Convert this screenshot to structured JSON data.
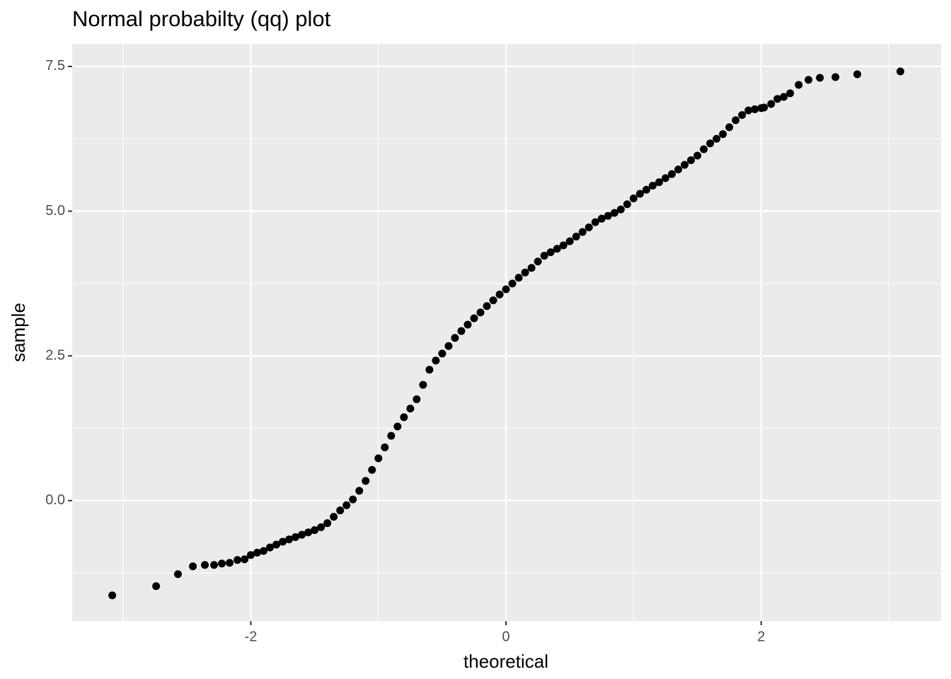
{
  "chart_data": {
    "type": "scatter",
    "title": "Normal probabilty (qq) plot",
    "x_label": "theoretical",
    "y_label": "sample",
    "color": "#000000",
    "panel_color": "#ebebeb",
    "grid": true,
    "xlim": [
      -3.4,
      3.41
    ],
    "ylim": [
      -2.08,
      7.89
    ],
    "xticks": [
      -2,
      0,
      2
    ],
    "yticks": [
      {
        "value": 0,
        "label": "0.0"
      },
      2.5,
      {
        "value": 5,
        "label": "5.0"
      },
      7.5
    ],
    "x_minor_grid": [
      -3,
      -1,
      1,
      3
    ],
    "y_minor_grid": [
      -1.25,
      1.25,
      3.75,
      6.25
    ],
    "x": [
      -3.086,
      -2.742,
      -2.571,
      -2.454,
      -2.36,
      -2.288,
      -2.227,
      -2.166,
      -2.105,
      -2.049,
      -2.0,
      -1.95,
      -1.9,
      -1.85,
      -1.8,
      -1.75,
      -1.7,
      -1.65,
      -1.6,
      -1.55,
      -1.5,
      -1.45,
      -1.4,
      -1.35,
      -1.3,
      -1.25,
      -1.2,
      -1.15,
      -1.1,
      -1.05,
      -1.0,
      -0.95,
      -0.9,
      -0.85,
      -0.8,
      -0.75,
      -0.7,
      -0.65,
      -0.6,
      -0.55,
      -0.5,
      -0.45,
      -0.4,
      -0.35,
      -0.3,
      -0.25,
      -0.2,
      -0.15,
      -0.1,
      -0.05,
      0,
      0.05,
      0.1,
      0.15,
      0.2,
      0.25,
      0.3,
      0.35,
      0.4,
      0.45,
      0.5,
      0.55,
      0.6,
      0.65,
      0.7,
      0.75,
      0.8,
      0.85,
      0.9,
      0.95,
      1.0,
      1.05,
      1.1,
      1.15,
      1.2,
      1.25,
      1.3,
      1.35,
      1.4,
      1.45,
      1.5,
      1.55,
      1.6,
      1.65,
      1.7,
      1.75,
      1.8,
      1.85,
      1.9,
      1.95,
      2.0,
      2.022,
      2.078,
      2.127,
      2.177,
      2.227,
      2.294,
      2.371,
      2.46,
      2.582,
      2.753,
      3.091
    ],
    "values": [
      -1.637,
      -1.478,
      -1.27,
      -1.136,
      -1.112,
      -1.112,
      -1.087,
      -1.075,
      -1.026,
      -1.014,
      -0.94,
      -0.9,
      -0.87,
      -0.81,
      -0.76,
      -0.71,
      -0.67,
      -0.63,
      -0.59,
      -0.55,
      -0.51,
      -0.46,
      -0.39,
      -0.28,
      -0.17,
      -0.08,
      0.02,
      0.17,
      0.34,
      0.53,
      0.73,
      0.92,
      1.12,
      1.28,
      1.44,
      1.59,
      1.75,
      2.0,
      2.26,
      2.42,
      2.54,
      2.67,
      2.81,
      2.93,
      3.04,
      3.15,
      3.25,
      3.36,
      3.46,
      3.56,
      3.65,
      3.75,
      3.85,
      3.94,
      4.02,
      4.13,
      4.23,
      4.29,
      4.35,
      4.41,
      4.48,
      4.56,
      4.64,
      4.72,
      4.81,
      4.87,
      4.92,
      4.97,
      5.03,
      5.12,
      5.22,
      5.3,
      5.37,
      5.44,
      5.5,
      5.57,
      5.64,
      5.72,
      5.8,
      5.88,
      5.96,
      6.07,
      6.17,
      6.25,
      6.33,
      6.45,
      6.57,
      6.66,
      6.74,
      6.76,
      6.78,
      6.791,
      6.852,
      6.938,
      6.974,
      7.036,
      7.182,
      7.268,
      7.304,
      7.316,
      7.365,
      7.414
    ]
  }
}
